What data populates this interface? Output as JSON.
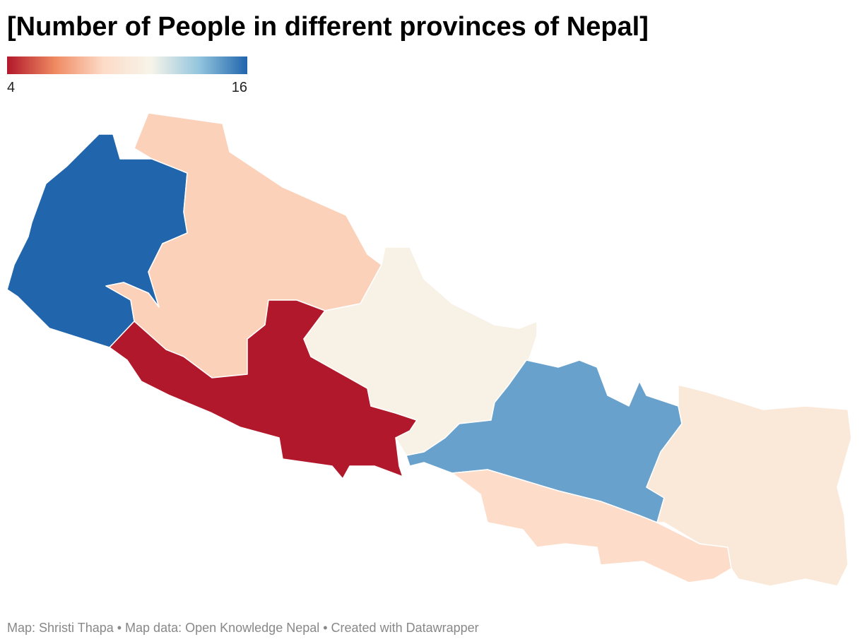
{
  "chart_data": {
    "type": "choropleth",
    "title": "[Number of People in different provinces of Nepal]",
    "values": [
      16,
      8.5,
      4,
      11,
      14.5,
      9,
      10
    ],
    "scale_range": [
      4,
      16
    ],
    "scale_ticks": [
      4,
      16
    ],
    "scale_colors": [
      "#b2182b",
      "#ef8a62",
      "#fddbc7",
      "#f7f4e9",
      "#92c5de",
      "#2166ac"
    ],
    "source": "Map: Shristi Thapa  • Map data: Open Knowledge Nepal • Created with Datawrapper"
  }
}
